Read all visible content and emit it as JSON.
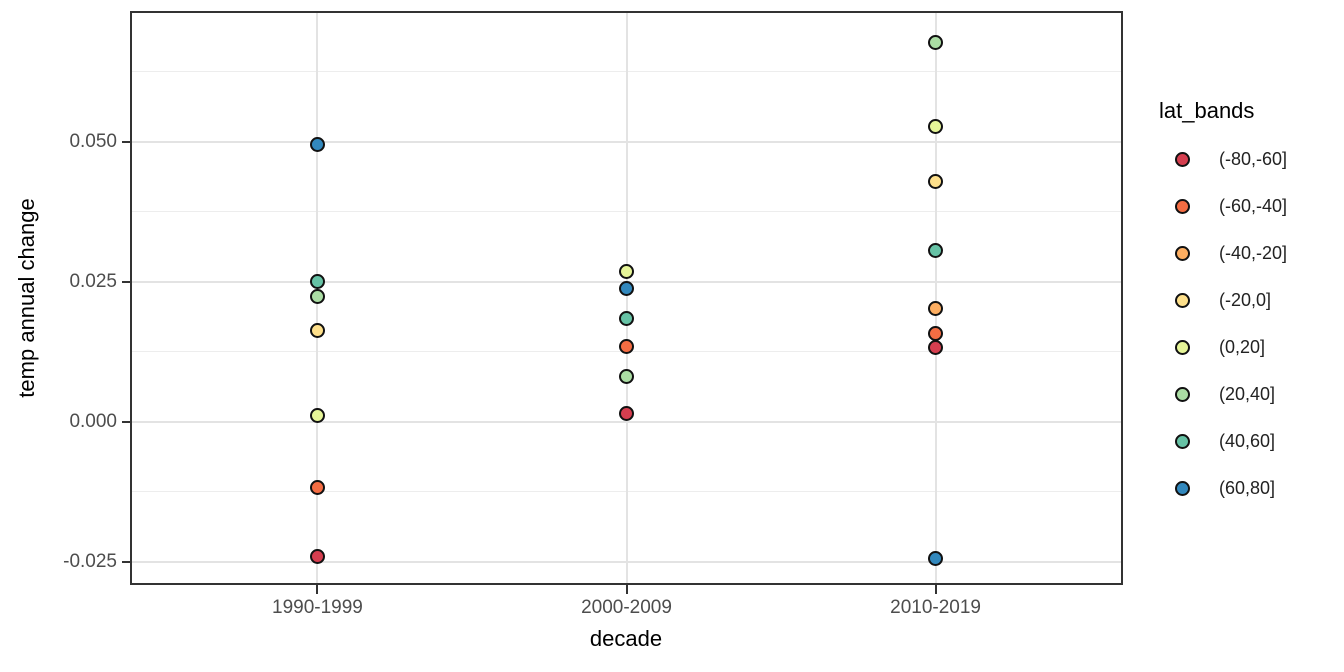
{
  "chart_data": {
    "type": "scatter",
    "title": "",
    "xlabel": "decade",
    "ylabel": "temp annual change",
    "categories": [
      "1990-1999",
      "2000-2009",
      "2010-2019"
    ],
    "y_tick_labels": [
      "0.050",
      "0.025",
      "0.000",
      "-0.025"
    ],
    "y_tick_values": [
      0.05,
      0.025,
      0.0,
      -0.025
    ],
    "y_minor_values": [
      0.0625,
      0.0375,
      0.0125,
      -0.0125
    ],
    "ylim": [
      -0.0288,
      0.073
    ],
    "grid": true,
    "legend": {
      "title": "lat_bands",
      "position": "right",
      "entries": [
        "(-80,-60]",
        "(-60,-40]",
        "(-40,-20]",
        "(-20,0]",
        "(0,20]",
        "(20,40]",
        "(40,60]",
        "(60,80]"
      ]
    },
    "series": [
      {
        "name": "(-80,-60]",
        "color": "#D53E4F",
        "values": [
          -0.024,
          0.0014,
          0.0132
        ]
      },
      {
        "name": "(-60,-40]",
        "color": "#F46D43",
        "values": [
          -0.0118,
          0.0134,
          0.0157
        ]
      },
      {
        "name": "(-40,-20]",
        "color": "#FDAE61",
        "values": [
          null,
          null,
          0.0202
        ]
      },
      {
        "name": "(-20,0]",
        "color": "#FEE08B",
        "values": [
          0.0163,
          null,
          0.0429
        ]
      },
      {
        "name": "(0,20]",
        "color": "#E6F598",
        "values": [
          0.0012,
          0.0268,
          0.0527
        ]
      },
      {
        "name": "(20,40]",
        "color": "#ABDDA4",
        "values": [
          0.0223,
          0.008,
          0.0677
        ]
      },
      {
        "name": "(40,60]",
        "color": "#66C2A5",
        "values": [
          0.025,
          0.0185,
          0.0305
        ]
      },
      {
        "name": "(60,80]",
        "color": "#3288BD",
        "values": [
          0.0495,
          0.0238,
          -0.0244
        ]
      }
    ],
    "colors": {
      "panel_border": "#333333",
      "grid_major": "#E3E3E3",
      "grid_minor": "#EDEDED",
      "tick_label": "#4D4D4D",
      "axis_title": "#000000",
      "point_stroke": "#111111"
    }
  }
}
